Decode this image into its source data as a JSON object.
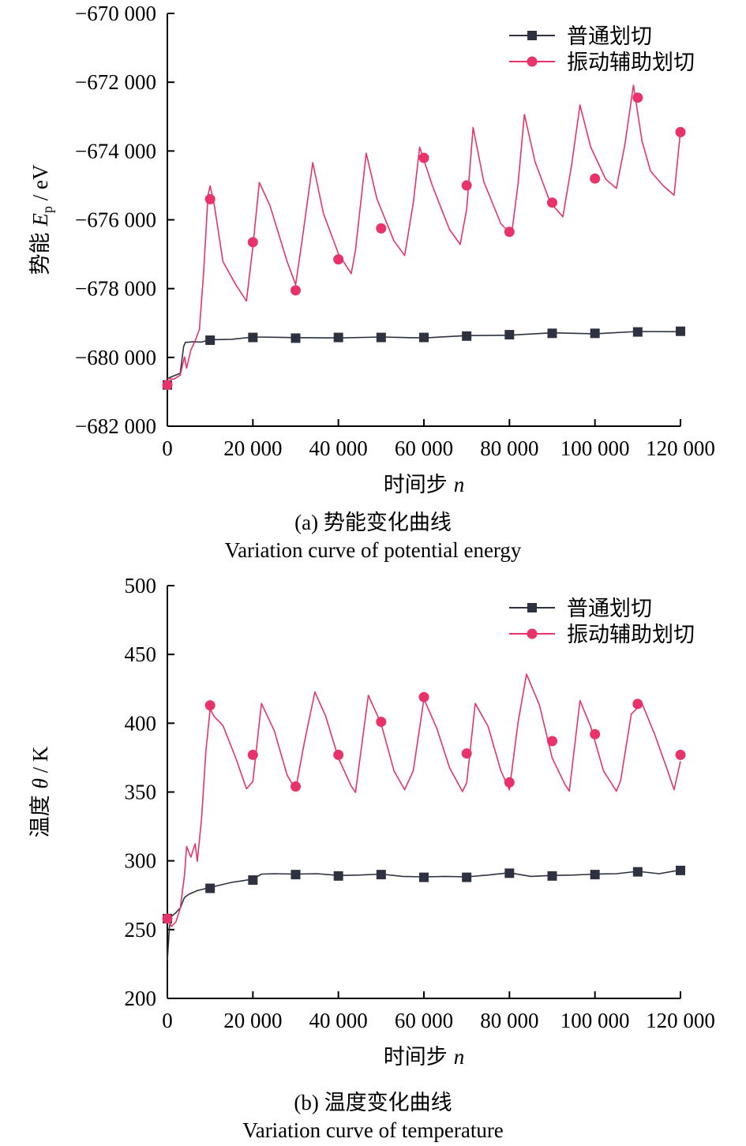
{
  "chart_data": [
    {
      "type": "line",
      "caption_cn": "(a) 势能变化曲线",
      "caption_en": "Variation curve of potential energy",
      "xlabel": "时间步",
      "xlabel_var": "n",
      "ylabel_cn": "势能",
      "ylabel_var": "E",
      "ylabel_sub": "p",
      "ylabel_unit": " / eV",
      "xlim": [
        0,
        120000
      ],
      "ylim": [
        -682000,
        -670000
      ],
      "xticks": [
        0,
        20000,
        40000,
        60000,
        80000,
        100000,
        120000
      ],
      "xtick_labels": [
        "0",
        "20 000",
        "40 000",
        "60 000",
        "80 000",
        "100 000",
        "120 000"
      ],
      "yticks": [
        -682000,
        -680000,
        -678000,
        -676000,
        -674000,
        -672000,
        -670000
      ],
      "ytick_labels": [
        "−682 000",
        "−680 000",
        "−678 000",
        "−676 000",
        "−674 000",
        "−672 000",
        "−670 000"
      ],
      "legend_position": "top-right",
      "series": [
        {
          "name": "普通划切",
          "color": "#2d3140",
          "marker": "square",
          "markers_x": [
            0,
            10000,
            20000,
            30000,
            40000,
            50000,
            60000,
            70000,
            80000,
            90000,
            100000,
            110000,
            120000
          ],
          "markers_y": [
            -680800,
            -679500,
            -679420,
            -679440,
            -679420,
            -679420,
            -679420,
            -679380,
            -679340,
            -679300,
            -679300,
            -679260,
            -679240
          ],
          "line_x": [
            0,
            1500,
            3000,
            3800,
            4200,
            6000,
            8000,
            10000,
            15000,
            20000,
            25000,
            30000,
            40000,
            50000,
            60000,
            70000,
            80000,
            90000,
            100000,
            110000,
            120000
          ],
          "line_y": [
            -680600,
            -680550,
            -680450,
            -679700,
            -679550,
            -679560,
            -679540,
            -679500,
            -679460,
            -679420,
            -679400,
            -679440,
            -679420,
            -679420,
            -679420,
            -679380,
            -679340,
            -679300,
            -679300,
            -679260,
            -679240
          ]
        },
        {
          "name": "振动辅助划切",
          "color": "#e8336a",
          "marker": "circle",
          "markers_x": [
            0,
            10000,
            20000,
            30000,
            40000,
            50000,
            60000,
            70000,
            80000,
            90000,
            100000,
            110000,
            120000
          ],
          "markers_y": [
            -680800,
            -675400,
            -676650,
            -678050,
            -677150,
            -676250,
            -674200,
            -675000,
            -676350,
            -675500,
            -674800,
            -672450,
            -673450
          ],
          "line_x": [
            0,
            1500,
            3000,
            4000,
            4500,
            5500,
            6500,
            7500,
            8500,
            9500,
            10000,
            11000,
            13000,
            16000,
            18500,
            20000,
            21500,
            24000,
            28000,
            30000,
            31500,
            34000,
            36500,
            40000,
            43000,
            44000,
            46500,
            49000,
            53000,
            55500,
            57500,
            59000,
            62000,
            66000,
            68500,
            70000,
            71500,
            74000,
            78000,
            80500,
            82000,
            83500,
            86000,
            89500,
            92500,
            94500,
            96500,
            99000,
            102500,
            105000,
            107000,
            109000,
            111000,
            113000,
            116000,
            118500,
            120000
          ],
          "line_y": [
            -680600,
            -680650,
            -680500,
            -680000,
            -680300,
            -679800,
            -679500,
            -679200,
            -677500,
            -675300,
            -675000,
            -675600,
            -677200,
            -677900,
            -678350,
            -676800,
            -674900,
            -675600,
            -677200,
            -677900,
            -676600,
            -674350,
            -675800,
            -677000,
            -677550,
            -676900,
            -674050,
            -675400,
            -676600,
            -677050,
            -675500,
            -673900,
            -675000,
            -676300,
            -676700,
            -675700,
            -673300,
            -674900,
            -676100,
            -676450,
            -674950,
            -672950,
            -674300,
            -675500,
            -675900,
            -674450,
            -672650,
            -673900,
            -674800,
            -675100,
            -673800,
            -672100,
            -673700,
            -674600,
            -675000,
            -675300,
            -673400
          ]
        }
      ]
    },
    {
      "type": "line",
      "caption_cn": "(b) 温度变化曲线",
      "caption_en": "Variation curve of temperature",
      "xlabel": "时间步",
      "xlabel_var": "n",
      "ylabel_cn": "温度",
      "ylabel_var": "θ",
      "ylabel_sub": "",
      "ylabel_unit": " / K",
      "xlim": [
        0,
        120000
      ],
      "ylim": [
        200,
        500
      ],
      "xticks": [
        0,
        20000,
        40000,
        60000,
        80000,
        100000,
        120000
      ],
      "xtick_labels": [
        "0",
        "20 000",
        "40 000",
        "60 000",
        "80 000",
        "100 000",
        "120 000"
      ],
      "yticks": [
        200,
        250,
        300,
        350,
        400,
        450,
        500
      ],
      "ytick_labels": [
        "200",
        "250",
        "300",
        "350",
        "400",
        "450",
        "500"
      ],
      "legend_position": "top-right",
      "series": [
        {
          "name": "普通划切",
          "color": "#2d3140",
          "marker": "square",
          "markers_x": [
            0,
            10000,
            20000,
            30000,
            40000,
            50000,
            60000,
            70000,
            80000,
            90000,
            100000,
            110000,
            120000
          ],
          "markers_y": [
            258,
            280,
            286,
            290,
            289,
            290,
            288,
            288,
            291,
            289,
            290,
            292,
            293
          ],
          "line_x": [
            0,
            500,
            1000,
            2000,
            3000,
            4000,
            5000,
            7000,
            10000,
            15000,
            20000,
            22000,
            25000,
            30000,
            35000,
            40000,
            45000,
            50000,
            55000,
            60000,
            65000,
            70000,
            75000,
            80000,
            85000,
            90000,
            95000,
            100000,
            105000,
            110000,
            115000,
            120000
          ],
          "line_y": [
            228,
            252,
            260,
            262,
            266,
            273,
            276,
            278,
            281,
            284,
            287,
            290,
            291,
            290,
            291,
            289,
            290,
            290,
            289,
            288,
            289,
            288,
            290,
            291,
            289,
            289,
            290,
            290,
            291,
            292,
            291,
            293
          ]
        },
        {
          "name": "振动辅助划切",
          "color": "#e8336a",
          "marker": "circle",
          "markers_x": [
            0,
            10000,
            20000,
            30000,
            40000,
            50000,
            60000,
            70000,
            80000,
            90000,
            100000,
            110000,
            120000
          ],
          "markers_y": [
            258,
            413,
            377,
            354,
            377,
            401,
            419,
            378,
            357,
            387,
            392,
            414,
            377
          ],
          "line_x": [
            0,
            1000,
            2000,
            3000,
            4000,
            4500,
            5500,
            6500,
            7000,
            8000,
            9000,
            10000,
            11000,
            13000,
            16000,
            18500,
            20000,
            22000,
            25000,
            28000,
            30000,
            32000,
            34500,
            37000,
            40000,
            43000,
            44000,
            47000,
            50000,
            53000,
            55500,
            57500,
            60000,
            63000,
            66000,
            69000,
            70000,
            72000,
            75000,
            78000,
            80000,
            82000,
            84000,
            87000,
            90000,
            93000,
            94000,
            96500,
            99000,
            102000,
            105000,
            106000,
            108500,
            111000,
            114000,
            117000,
            118500,
            120000
          ],
          "line_y": [
            258,
            252,
            256,
            265,
            290,
            310,
            303,
            312,
            300,
            330,
            380,
            410,
            405,
            398,
            375,
            352,
            358,
            414,
            395,
            362,
            352,
            385,
            423,
            405,
            375,
            354,
            350,
            420,
            400,
            365,
            352,
            365,
            418,
            396,
            368,
            350,
            357,
            414,
            398,
            365,
            352,
            400,
            436,
            413,
            375,
            355,
            351,
            416,
            398,
            365,
            351,
            358,
            407,
            414,
            392,
            365,
            352,
            372
          ]
        }
      ]
    }
  ]
}
